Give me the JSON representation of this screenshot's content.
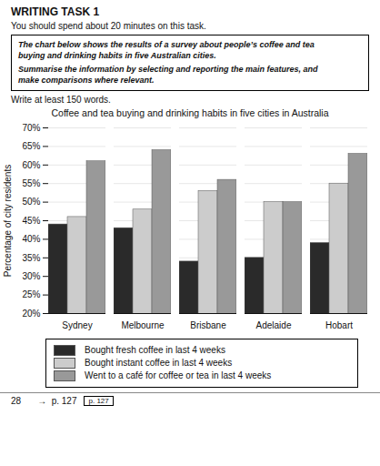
{
  "chart_data": {
    "type": "bar",
    "title": "Coffee and tea buying and drinking habits in five cities in Australia",
    "ylabel": "Percentage of city residents",
    "categories": [
      "Sydney",
      "Melbourne",
      "Brisbane",
      "Adelaide",
      "Hobart"
    ],
    "series": [
      {
        "name": "Bought fresh coffee in last 4 weeks",
        "color": "#2a2a2a",
        "values": [
          44,
          43,
          34,
          35,
          39
        ]
      },
      {
        "name": "Bought instant coffee in last 4 weeks",
        "color": "#cccccc",
        "values": [
          46,
          48,
          53,
          50,
          55
        ]
      },
      {
        "name": "Went to a café for coffee or tea in last 4 weeks",
        "color": "#999999",
        "values": [
          61,
          64,
          56,
          50,
          63
        ]
      }
    ],
    "ylim": [
      20,
      70
    ],
    "yticks": [
      {
        "value": 20,
        "label": "20%"
      },
      {
        "value": 25,
        "label": "25%"
      },
      {
        "value": 30,
        "label": "30%"
      },
      {
        "value": 35,
        "label": "35%"
      },
      {
        "value": 40,
        "label": "40%"
      },
      {
        "value": 45,
        "label": "45%"
      },
      {
        "value": 50,
        "label": "50%"
      },
      {
        "value": 55,
        "label": "55%"
      },
      {
        "value": 60,
        "label": "60%"
      },
      {
        "value": 65,
        "label": "65%"
      },
      {
        "value": 70,
        "label": "70%"
      }
    ],
    "grid": true,
    "legend": "bottom",
    "annotations": [
      "WRITING TASK 1",
      "You should spend about 20 minutes on this task.",
      "The chart below shows the results of a survey about people’s coffee and tea",
      "buying and drinking habits in five Australian cities.",
      "Summarise the information by selecting and reporting the main features, and",
      "make comparisons where relevant.",
      "Write at least 150 words.",
      "28",
      "→  p. 127",
      "p. 127"
    ]
  }
}
